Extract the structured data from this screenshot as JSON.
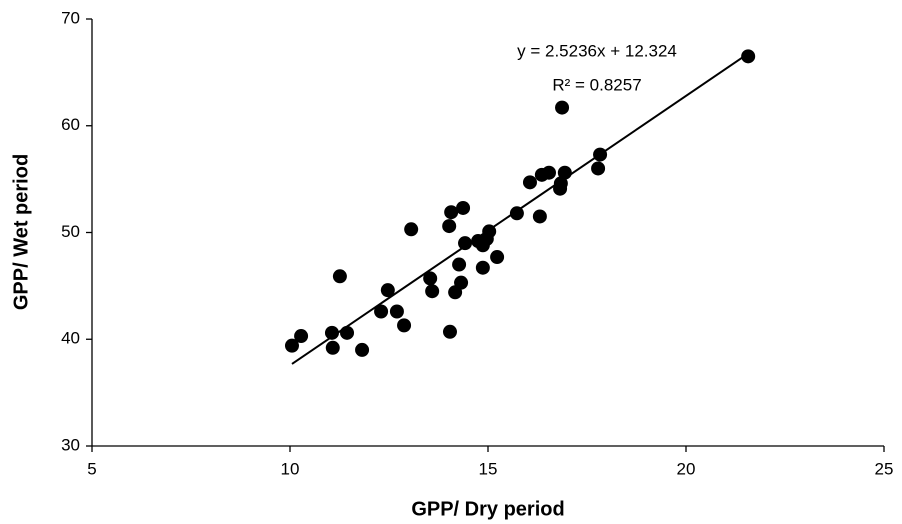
{
  "chart_data": {
    "type": "scatter",
    "x_label": "GPP/ Dry period",
    "y_label": "GPP/ Wet period",
    "color": "#000000",
    "x": [
      10.05,
      10.28,
      11.06,
      11.08,
      11.26,
      11.44,
      11.82,
      12.3,
      12.47,
      12.7,
      12.88,
      13.06,
      13.54,
      13.59,
      14.02,
      14.07,
      14.04,
      14.17,
      14.27,
      14.32,
      14.37,
      14.42,
      14.75,
      14.87,
      14.87,
      14.97,
      15.03,
      15.23,
      15.73,
      16.06,
      16.31,
      16.36,
      16.54,
      16.82,
      16.84,
      16.87,
      16.94,
      17.78,
      17.83,
      21.57
    ],
    "values": [
      39.4,
      40.3,
      40.6,
      39.2,
      45.9,
      40.6,
      39.0,
      42.6,
      44.6,
      42.6,
      41.3,
      50.3,
      45.7,
      44.5,
      50.6,
      51.9,
      40.7,
      44.4,
      47.0,
      45.3,
      52.3,
      49.0,
      49.2,
      48.8,
      46.7,
      49.4,
      50.1,
      47.7,
      51.8,
      54.7,
      51.5,
      55.4,
      55.6,
      54.1,
      54.6,
      61.7,
      55.6,
      56.0,
      57.3,
      66.5
    ],
    "xlim": [
      5,
      25
    ],
    "xticks": [
      5,
      10,
      15,
      20,
      25
    ],
    "ylim": [
      30,
      70
    ],
    "yticks": [
      30,
      40,
      50,
      60,
      70
    ],
    "trendline": {
      "slope": 2.5236,
      "intercept": 12.324,
      "label": "y = 2.5236x + 12.324",
      "r2_label": "R² = 0.8257"
    }
  }
}
